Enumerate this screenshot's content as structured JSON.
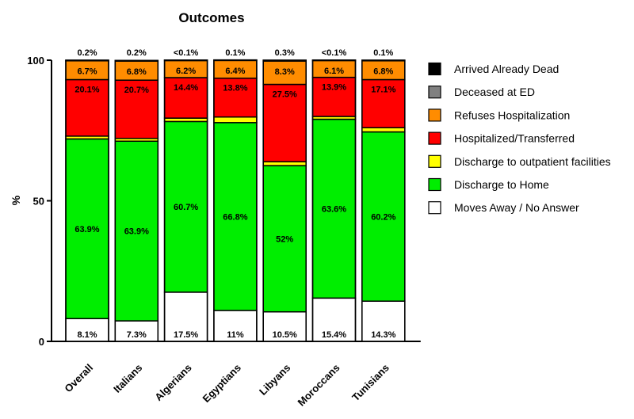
{
  "chart_data": {
    "type": "bar",
    "stacked": true,
    "title": "Outcomes",
    "xlabel": "",
    "ylabel": "%",
    "ylim": [
      0,
      100
    ],
    "yticks": [
      "0",
      "50",
      "100"
    ],
    "legend_position": "right",
    "categories": [
      "Overall",
      "Italians",
      "Algerians",
      "Egyptians",
      "Libyans",
      "Moroccans",
      "Tunisians"
    ],
    "series": [
      {
        "name": "Moves Away / No Answer",
        "color": "#ffffff",
        "values": [
          8.1,
          7.3,
          17.5,
          11,
          10.5,
          15.4,
          14.3
        ],
        "labels": [
          "8.1%",
          "7.3%",
          "17.5%",
          "11%",
          "10.5%",
          "15.4%",
          "14.3%"
        ]
      },
      {
        "name": "Discharge to Home",
        "color": "#00ee00",
        "values": [
          63.9,
          63.9,
          60.7,
          66.8,
          52,
          63.6,
          60.2
        ],
        "labels": [
          "63.9%",
          "63.9%",
          "60.7%",
          "66.8%",
          "52%",
          "63.6%",
          "60.2%"
        ]
      },
      {
        "name": "Discharge to outpatient facilities",
        "color": "#ffff00",
        "values": [
          1.0,
          1.0,
          1.2,
          2.0,
          1.4,
          1.0,
          1.5
        ],
        "labels": [
          "",
          "",
          "",
          "",
          "",
          "",
          ""
        ]
      },
      {
        "name": "Hospitalized/Transferred",
        "color": "#ff0000",
        "values": [
          20.1,
          20.7,
          14.4,
          13.8,
          27.5,
          13.9,
          17.1
        ],
        "labels": [
          "20.1%",
          "20.7%",
          "14.4%",
          "13.8%",
          "27.5%",
          "13.9%",
          "17.1%"
        ]
      },
      {
        "name": "Refuses Hospitalization",
        "color": "#ff8c00",
        "values": [
          6.7,
          6.8,
          6.2,
          6.4,
          8.3,
          6.1,
          6.8
        ],
        "labels": [
          "6.7%",
          "6.8%",
          "6.2%",
          "6.4%",
          "8.3%",
          "6.1%",
          "6.8%"
        ]
      },
      {
        "name": "Deceased at ED",
        "color": "#808080",
        "values": [
          0,
          0,
          0,
          0,
          0,
          0,
          0
        ],
        "labels": [
          "",
          "",
          "",
          "",
          "",
          "",
          ""
        ]
      },
      {
        "name": "Arrived Already Dead",
        "color": "#000000",
        "values": [
          0.2,
          0.2,
          0.05,
          0.1,
          0.3,
          0.05,
          0.1
        ],
        "labels": [
          "0.2%",
          "0.2%",
          "<0.1%",
          "0.1%",
          "0.3%",
          "<0.1%",
          "0.1%"
        ]
      }
    ],
    "legend_order": [
      "Arrived Already Dead",
      "Deceased at ED",
      "Refuses Hospitalization",
      "Hospitalized/Transferred",
      "Discharge to outpatient facilities",
      "Discharge to Home",
      "Moves Away / No Answer"
    ]
  }
}
